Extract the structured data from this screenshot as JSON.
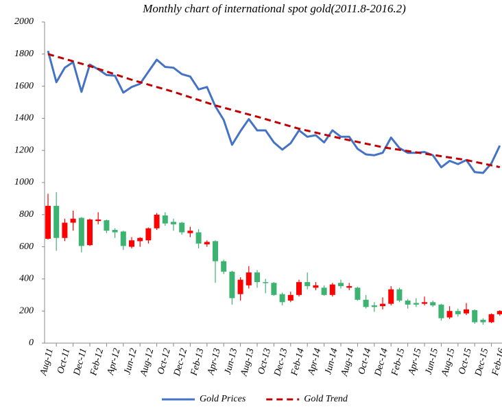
{
  "chart_data": {
    "type": "line-candlestick",
    "title": "Monthly chart of international spot gold(2011.8-2016.2)",
    "categories": [
      "Aug-11",
      null,
      "Oct-11",
      null,
      "Dec-11",
      null,
      "Feb-12",
      null,
      "Apr-12",
      null,
      "Jun-12",
      null,
      "Aug-12",
      null,
      "Oct-12",
      null,
      "Dec-12",
      null,
      "Feb-13",
      null,
      "Apr-13",
      null,
      "Jun-13",
      null,
      "Aug-13",
      null,
      "Oct-13",
      null,
      "Dec-13",
      null,
      "Feb-14",
      null,
      "Apr-14",
      null,
      "Jun-14",
      null,
      "Aug-14",
      null,
      "Oct-14",
      null,
      "Dec-14",
      null,
      "Feb-15",
      null,
      "Apr-15",
      null,
      "Jun-15",
      null,
      "Aug-15",
      null,
      "Oct-15",
      null,
      "Dec-15",
      null,
      "Feb-16"
    ],
    "series": [
      {
        "name": "Gold Prices",
        "color": "#4472c4",
        "dashed": false,
        "values": [
          1820,
          1625,
          1715,
          1750,
          1565,
          1735,
          1705,
          1670,
          1665,
          1560,
          1595,
          1615,
          1690,
          1765,
          1720,
          1715,
          1675,
          1660,
          1580,
          1595,
          1475,
          1390,
          1235,
          1320,
          1395,
          1325,
          1325,
          1250,
          1205,
          1245,
          1325,
          1285,
          1295,
          1250,
          1325,
          1285,
          1285,
          1210,
          1175,
          1170,
          1185,
          1280,
          1215,
          1185,
          1185,
          1190,
          1170,
          1095,
          1135,
          1115,
          1140,
          1065,
          1060,
          1120,
          1230
        ]
      },
      {
        "name": "Gold Trend",
        "color": "#c00000",
        "dashed": true,
        "values": [
          1800,
          1785,
          1770,
          1755,
          1740,
          1725,
          1708,
          1691,
          1674,
          1657,
          1640,
          1625,
          1610,
          1595,
          1580,
          1565,
          1548,
          1531,
          1514,
          1497,
          1480,
          1466,
          1452,
          1438,
          1424,
          1410,
          1395,
          1380,
          1365,
          1350,
          1335,
          1323,
          1311,
          1299,
          1287,
          1275,
          1264,
          1253,
          1242,
          1231,
          1220,
          1212,
          1204,
          1196,
          1188,
          1180,
          1172,
          1164,
          1156,
          1148,
          1140,
          1129,
          1118,
          1107,
          1096
        ]
      }
    ],
    "candles": {
      "up_color": "#ff0000",
      "down_color": "#3cb371",
      "open": [
        650,
        855,
        655,
        750,
        780,
        610,
        760,
        765,
        705,
        695,
        600,
        635,
        640,
        715,
        795,
        755,
        750,
        685,
        690,
        615,
        635,
        510,
        445,
        305,
        360,
        440,
        380,
        375,
        305,
        265,
        300,
        380,
        345,
        345,
        300,
        375,
        345,
        345,
        270,
        235,
        230,
        245,
        335,
        265,
        250,
        245,
        255,
        240,
        160,
        200,
        185,
        205,
        145,
        130,
        180
      ],
      "close": [
        855,
        655,
        750,
        775,
        605,
        770,
        770,
        700,
        690,
        605,
        640,
        655,
        715,
        800,
        745,
        740,
        690,
        700,
        620,
        630,
        510,
        445,
        280,
        395,
        440,
        380,
        375,
        300,
        255,
        300,
        380,
        355,
        360,
        300,
        365,
        355,
        355,
        270,
        225,
        225,
        245,
        335,
        265,
        240,
        240,
        255,
        235,
        155,
        200,
        180,
        210,
        130,
        130,
        180,
        200
      ],
      "high": [
        930,
        940,
        775,
        825,
        785,
        775,
        815,
        770,
        715,
        700,
        660,
        660,
        720,
        810,
        815,
        775,
        755,
        725,
        710,
        640,
        640,
        520,
        450,
        410,
        480,
        455,
        400,
        380,
        315,
        320,
        395,
        440,
        380,
        360,
        375,
        395,
        375,
        350,
        300,
        255,
        285,
        355,
        345,
        275,
        280,
        290,
        265,
        245,
        230,
        215,
        250,
        210,
        155,
        185,
        205
      ],
      "low": [
        645,
        575,
        635,
        700,
        565,
        605,
        740,
        685,
        655,
        580,
        590,
        600,
        620,
        705,
        730,
        700,
        675,
        660,
        590,
        600,
        375,
        430,
        240,
        265,
        340,
        345,
        310,
        295,
        235,
        255,
        290,
        335,
        330,
        295,
        290,
        340,
        330,
        265,
        215,
        195,
        210,
        235,
        255,
        215,
        225,
        235,
        225,
        140,
        150,
        165,
        175,
        120,
        115,
        125,
        170
      ]
    },
    "ylim": [
      0,
      2000
    ],
    "yticks": [
      0,
      200,
      400,
      600,
      800,
      1000,
      1200,
      1400,
      1600,
      1800,
      2000
    ],
    "grid": false,
    "legend": "bottom"
  }
}
